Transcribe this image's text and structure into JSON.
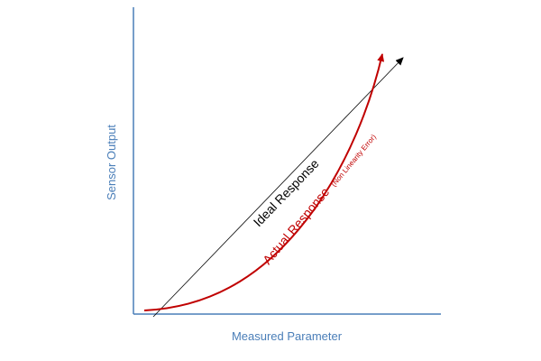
{
  "diagram": {
    "x_axis_label": "Measured Parameter",
    "y_axis_label": "Sensor Output",
    "ideal_label": "Ideal Response",
    "actual_label": "Actual Response",
    "actual_sublabel": "(Non Linearity Error)"
  },
  "colors": {
    "axis": "#4a7eb8",
    "axis_label": "#4a7eb8",
    "ideal_line": "#000000",
    "actual_curve": "#c00000",
    "background": "#ffffff"
  }
}
